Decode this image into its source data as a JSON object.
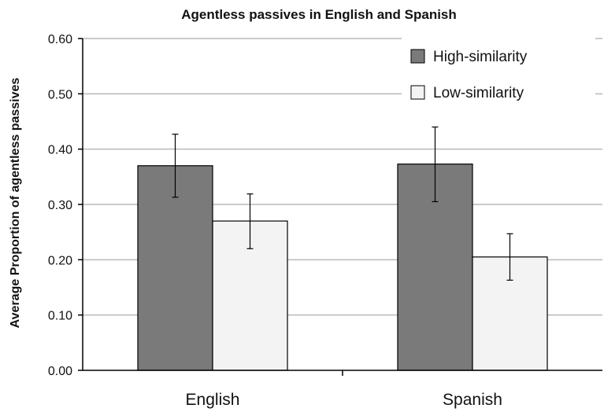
{
  "chart_data": {
    "type": "bar",
    "title": "Agentless passives in English and Spanish",
    "ylabel": "Average Proportion of  agentless passives",
    "xlabel": "",
    "categories": [
      "English",
      "Spanish"
    ],
    "ylim": [
      0,
      0.6
    ],
    "yticks": [
      "0.00",
      "0.10",
      "0.20",
      "0.30",
      "0.40",
      "0.50",
      "0.60"
    ],
    "grid": true,
    "legend_position": "top-right",
    "series": [
      {
        "name": "High-similarity",
        "color": "#7a7a7a",
        "values": [
          0.37,
          0.373
        ],
        "error_low": [
          0.313,
          0.305
        ],
        "error_high": [
          0.427,
          0.44
        ]
      },
      {
        "name": "Low-similarity",
        "color": "#f3f3f3",
        "values": [
          0.27,
          0.205
        ],
        "error_low": [
          0.22,
          0.163
        ],
        "error_high": [
          0.319,
          0.247
        ]
      }
    ]
  }
}
